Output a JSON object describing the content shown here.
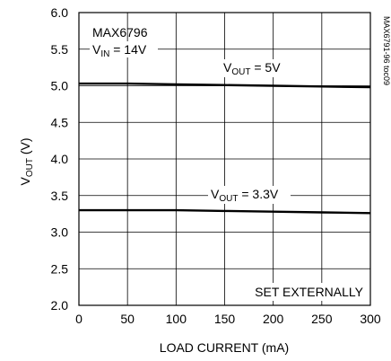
{
  "chart_data": {
    "type": "line",
    "xlabel": "LOAD CURRENT (mA)",
    "ylabel": {
      "main": "V",
      "sub": "OUT",
      "unit": " (V)"
    },
    "xlim": [
      0,
      300
    ],
    "ylim": [
      2.0,
      6.0
    ],
    "xticks": [
      0,
      50,
      100,
      150,
      200,
      250,
      300
    ],
    "yticks": [
      "2.0",
      "2.5",
      "3.0",
      "3.5",
      "4.0",
      "4.5",
      "5.0",
      "5.5",
      "6.0"
    ],
    "grid": true,
    "series": [
      {
        "name": "VOUT = 5V",
        "x": [
          0,
          50,
          100,
          150,
          200,
          250,
          300
        ],
        "y": [
          5.03,
          5.03,
          5.02,
          5.01,
          5.0,
          4.99,
          4.98
        ]
      },
      {
        "name": "VOUT = 3.3V",
        "x": [
          0,
          50,
          100,
          150,
          200,
          250,
          300
        ],
        "y": [
          3.3,
          3.3,
          3.3,
          3.29,
          3.28,
          3.27,
          3.26
        ]
      }
    ],
    "annotations": {
      "device": "MAX6796",
      "vin": {
        "main": "V",
        "sub": "IN",
        "rest": " = 14V"
      },
      "label_5v": {
        "main": "V",
        "sub": "OUT",
        "rest": " = 5V"
      },
      "label_33v": {
        "main": "V",
        "sub": "OUT",
        "rest": " = 3.3V"
      },
      "set_externally": "SET EXTERNALLY",
      "figure_id": "MAX6791-96 toc09"
    }
  }
}
